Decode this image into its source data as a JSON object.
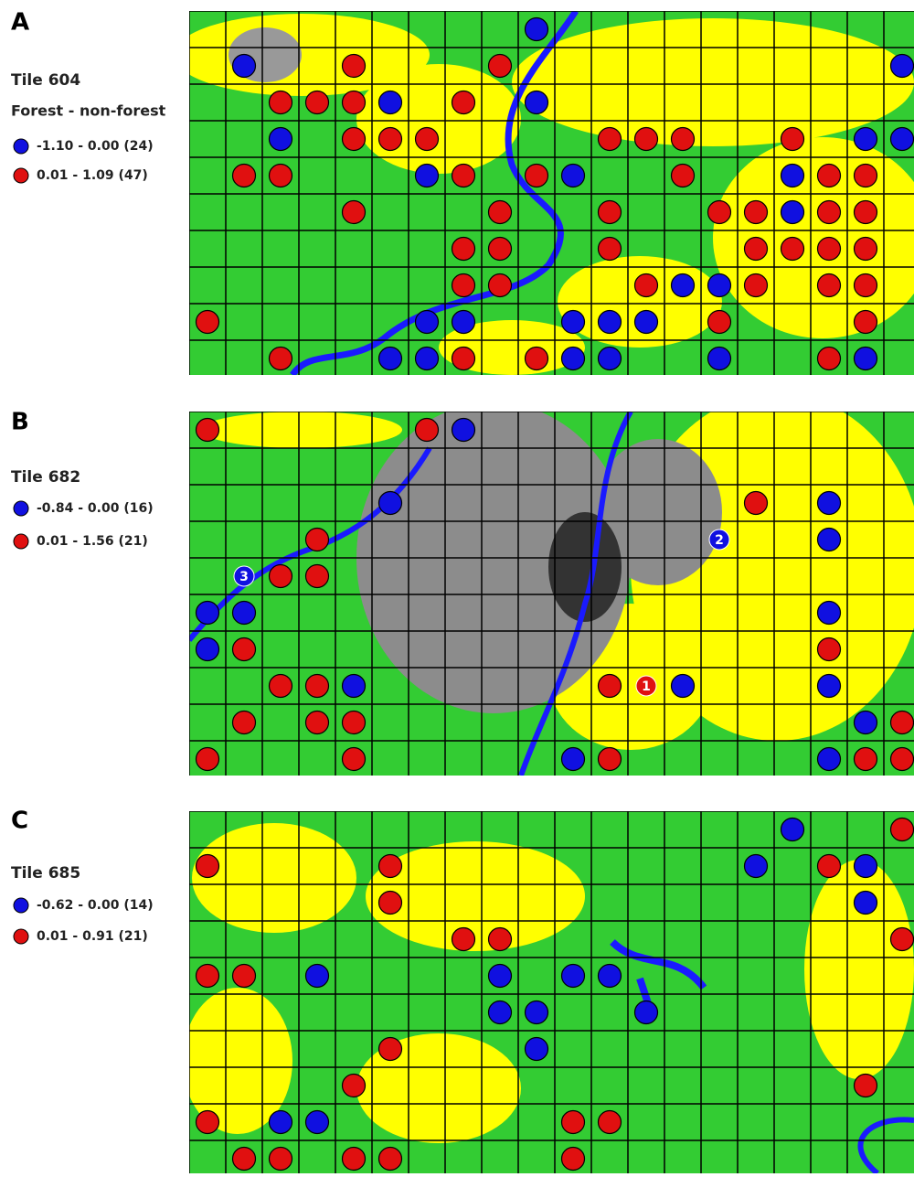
{
  "panels": [
    {
      "letter": "A",
      "tile": "Tile 604",
      "heading": "Forest - non-forest",
      "legend": [
        "-1.10 - 0.00 (24)",
        "0.01 - 1.09 (47)"
      ]
    },
    {
      "letter": "B",
      "tile": "Tile 682",
      "legend": [
        "-0.84 - 0.00 (16)",
        "0.01 - 1.56 (21)"
      ],
      "markers": [
        "1",
        "2",
        "3"
      ]
    },
    {
      "letter": "C",
      "tile": "Tile 685",
      "legend": [
        "-0.62 - 0.00 (14)",
        "0.01 - 0.91 (21)"
      ]
    }
  ]
}
